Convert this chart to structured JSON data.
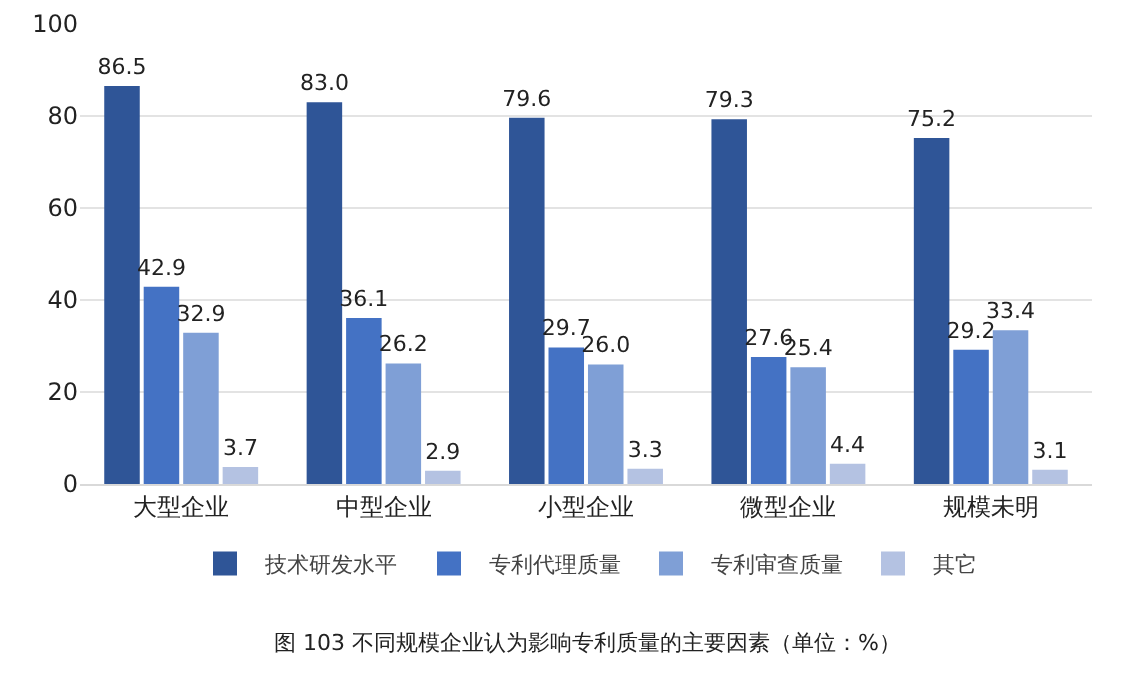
{
  "chart_data": {
    "type": "bar",
    "categories": [
      "大型企业",
      "中型企业",
      "小型企业",
      "微型企业",
      "规模未明"
    ],
    "series": [
      {
        "name": "技术研发水平",
        "color": "#2f5597",
        "values": [
          86.5,
          83.0,
          79.6,
          79.3,
          75.2
        ],
        "value_labels": [
          "86.5",
          "83.0",
          "79.6",
          "79.3",
          "75.2"
        ]
      },
      {
        "name": "专利代理质量",
        "color": "#4472c4",
        "values": [
          42.9,
          36.1,
          29.7,
          27.6,
          29.2
        ],
        "value_labels": [
          "42.9",
          "36.1",
          "29.7",
          "27.6",
          "29.2"
        ]
      },
      {
        "name": "专利审查质量",
        "color": "#7f9fd6",
        "values": [
          32.9,
          26.2,
          26.0,
          25.4,
          33.4
        ],
        "value_labels": [
          "32.9",
          "26.2",
          "26.0",
          "25.4",
          "33.4"
        ]
      },
      {
        "name": "其它",
        "color": "#b4c2e2",
        "values": [
          3.7,
          2.9,
          3.3,
          4.4,
          3.1
        ],
        "value_labels": [
          "3.7",
          "2.9",
          "3.3",
          "4.4",
          "3.1"
        ]
      }
    ],
    "ylim": [
      0,
      100
    ],
    "yticks": [
      0,
      20,
      40,
      60,
      80,
      100
    ],
    "grid": "y",
    "legend": "bottom",
    "annotations": [
      "图 103 不同规模企业认为影响专利质量的主要因素（单位：%）"
    ]
  }
}
